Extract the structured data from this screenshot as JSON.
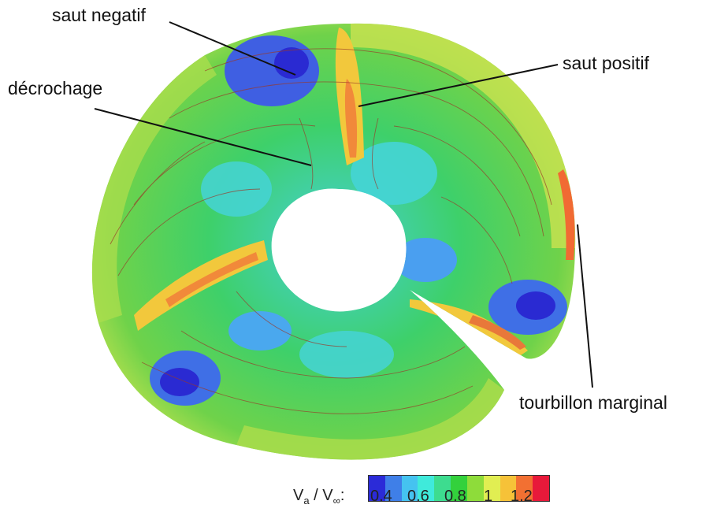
{
  "annotations": {
    "saut_negatif": "saut negatif",
    "saut_positif": "saut positif",
    "decrochage": "décrochage",
    "tourbillon": "tourbillon marginal"
  },
  "colorbar": {
    "var": "V",
    "var_sub": "a",
    "sep": " / ",
    "ref": "V",
    "ref_sub": "∞",
    "colon": ":",
    "ticks": [
      "0.4",
      "0.6",
      "0.8",
      "1",
      "1.2"
    ],
    "colors": [
      "#2b2bd8",
      "#3f7fe8",
      "#45c3f0",
      "#3feadb",
      "#3ddc8f",
      "#33d13c",
      "#8edc3a",
      "#e1ee52",
      "#f6c238",
      "#f27032",
      "#e8193a"
    ]
  },
  "surface_colors": {
    "blue": "#3b46d6",
    "light_blue": "#4aa8ee",
    "cyan": "#43d4d4",
    "green": "#3ecf63",
    "light_green": "#87d84a",
    "yellow": "#dde855",
    "orange": "#f1a53a",
    "red": "#e64537"
  }
}
